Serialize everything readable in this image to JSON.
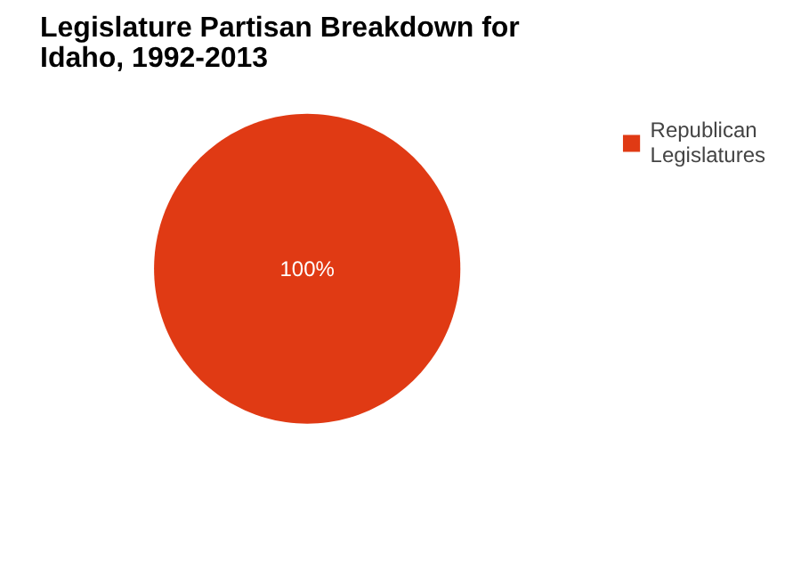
{
  "chart_data": {
    "type": "pie",
    "title": "Legislature Partisan Breakdown for Idaho, 1992-2013",
    "categories": [
      "Republican Legislatures"
    ],
    "values": [
      100
    ],
    "colors": [
      "#e03a14"
    ],
    "value_labels": [
      "100%"
    ],
    "legend": "top right"
  }
}
